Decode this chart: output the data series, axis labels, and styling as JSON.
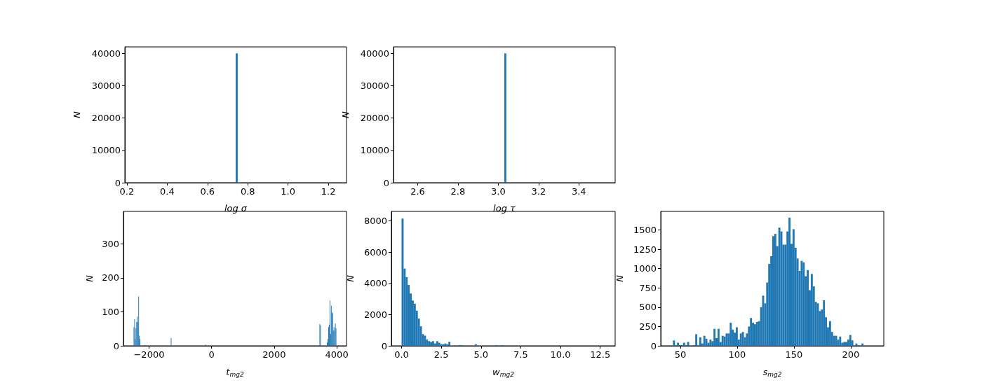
{
  "chart_data": [
    {
      "type": "histogram",
      "xlabel": "log σ",
      "ylabel": "N",
      "color": "#1f77b4",
      "bins": [
        0.74,
        0.75
      ],
      "values": [
        40000
      ],
      "xlim": [
        0.19,
        1.29
      ],
      "ylim": [
        0,
        42000
      ],
      "xticks": [
        0.2,
        0.4,
        0.6,
        0.8,
        {
          "value": 1,
          "label": "1.0"
        },
        1.2
      ],
      "yticks": [
        0,
        10000,
        20000,
        30000,
        40000
      ],
      "grid": false
    },
    {
      "type": "histogram",
      "xlabel": "log τ",
      "ylabel": "N",
      "color": "#1f77b4",
      "bins": [
        3.03,
        3.04
      ],
      "values": [
        40000
      ],
      "xlim": [
        2.48,
        3.58
      ],
      "ylim": [
        0,
        42000
      ],
      "xticks": [
        2.6,
        2.8,
        {
          "value": 3,
          "label": "3.0"
        },
        3.2,
        3.4
      ],
      "yticks": [
        0,
        10000,
        20000,
        30000,
        40000
      ],
      "grid": false
    },
    {
      "type": "histogram",
      "xlabel": "t$_{mg2}$",
      "ylabel": "N",
      "color": "#1f77b4",
      "bins": [
        -2493,
        -2471.4,
        -2449.8,
        -2428.2,
        -2406.6,
        -2385,
        -2363.4,
        -2341.8,
        -2320.2,
        -2298.6,
        -2277,
        -2147.4,
        -2125.8,
        -1305,
        -1283.4,
        -203.4,
        -181.8,
        3447,
        3468.6,
        3490.2,
        3684.6,
        3706.2,
        3727.8,
        3749.4,
        3771,
        3792.6,
        3814.2,
        3835.8,
        3857.4,
        3879,
        3900.6,
        3922.2,
        3943.8,
        3965.4,
        3987
      ],
      "values": [
        55,
        78,
        20,
        52,
        70,
        86,
        70,
        145,
        30,
        20,
        0,
        3,
        0,
        23,
        0,
        4,
        0,
        64,
        60,
        0,
        10,
        20,
        55,
        62,
        133,
        35,
        118,
        95,
        98,
        45,
        55,
        45,
        66,
        52
      ],
      "xlim": [
        -2817,
        4311
      ],
      "ylim": [
        0,
        395
      ],
      "xticks": [
        {
          "value": -2000,
          "label": "−2000"
        },
        0,
        2000,
        4000
      ],
      "yticks": [
        0,
        100,
        200,
        300
      ],
      "grid": false
    },
    {
      "type": "histogram",
      "xlabel": "w$_{mg2}$",
      "ylabel": "N",
      "color": "#1f77b4",
      "bins": [
        0,
        0.128,
        0.256,
        0.384,
        0.512,
        0.64,
        0.768,
        0.896,
        1.024,
        1.152,
        1.28,
        1.408,
        1.536,
        1.664,
        1.792,
        1.92,
        2.048,
        2.176,
        2.304,
        2.432,
        2.56,
        2.688,
        2.816,
        2.944,
        3.072,
        3.584,
        3.712,
        3.84,
        4.608,
        4.736,
        5.888,
        6.016,
        6.272,
        6.4
      ],
      "values": [
        8150,
        4950,
        4400,
        3900,
        3350,
        2900,
        2700,
        2250,
        1750,
        1250,
        750,
        650,
        400,
        300,
        250,
        300,
        150,
        300,
        200,
        100,
        100,
        150,
        100,
        250,
        0,
        50,
        50,
        0,
        100,
        0,
        50,
        0,
        50
      ],
      "xlim": [
        -0.64,
        13.44
      ],
      "ylim": [
        0,
        8610
      ],
      "xticks": [
        {
          "value": 0,
          "label": "0.0"
        },
        2.5,
        {
          "value": 5,
          "label": "5.0"
        },
        7.5,
        {
          "value": 10,
          "label": "10.0"
        },
        12.5
      ],
      "yticks": [
        0,
        2000,
        4000,
        6000,
        8000
      ],
      "grid": false
    },
    {
      "type": "histogram",
      "xlabel": "s$_{mg2}$",
      "ylabel": "N",
      "color": "#1f77b4",
      "bins": [
        43.435,
        45.22,
        47.005,
        48.79,
        50.575,
        52.36,
        54.145,
        55.93,
        57.715,
        61.285,
        63.07,
        64.855,
        66.64,
        68.425,
        70.21,
        71.995,
        73.78,
        75.565,
        77.35,
        79.135,
        80.92,
        82.705,
        84.49,
        86.275,
        88.06,
        89.845,
        91.63,
        93.415,
        95.2,
        96.985,
        98.77,
        100.555,
        102.34,
        104.125,
        105.91,
        107.695,
        109.48,
        111.265,
        113.05,
        114.835,
        116.62,
        118.405,
        120.19,
        121.975,
        123.76,
        125.545,
        127.33,
        129.115,
        130.9,
        132.685,
        134.47,
        136.255,
        138.04,
        139.825,
        141.61,
        143.395,
        145.18,
        146.965,
        148.75,
        150.535,
        152.32,
        154.105,
        155.89,
        157.675,
        159.46,
        161.245,
        163.03,
        164.815,
        166.6,
        168.385,
        170.17,
        171.955,
        173.74,
        175.525,
        177.31,
        179.095,
        180.88,
        182.665,
        184.45,
        186.235,
        188.02,
        189.805,
        191.59,
        193.375,
        195.16,
        196.945,
        198.73,
        200.515,
        202.3,
        204.085,
        205.87,
        207.655,
        209.44,
        211.225
      ],
      "values": [
        70,
        10,
        40,
        10,
        10,
        40,
        10,
        50,
        0,
        10,
        150,
        10,
        110,
        30,
        130,
        90,
        40,
        80,
        60,
        220,
        100,
        220,
        50,
        130,
        120,
        160,
        160,
        300,
        210,
        170,
        240,
        80,
        160,
        180,
        110,
        160,
        250,
        360,
        300,
        280,
        310,
        320,
        500,
        650,
        550,
        820,
        1060,
        1160,
        1420,
        1450,
        1290,
        1530,
        1480,
        1310,
        1310,
        1480,
        1660,
        1320,
        1510,
        1270,
        1130,
        970,
        1100,
        1080,
        900,
        980,
        720,
        930,
        770,
        570,
        550,
        450,
        470,
        590,
        370,
        240,
        320,
        180,
        130,
        130,
        80,
        120,
        40,
        50,
        50,
        80,
        140,
        70,
        0,
        30,
        10,
        0,
        30
      ],
      "xlim": [
        32.7,
        229.1
      ],
      "ylim": [
        0,
        1740
      ],
      "xticks": [
        50,
        100,
        150,
        200
      ],
      "yticks": [
        0,
        250,
        500,
        750,
        1000,
        1250,
        1500
      ],
      "grid": false
    }
  ]
}
